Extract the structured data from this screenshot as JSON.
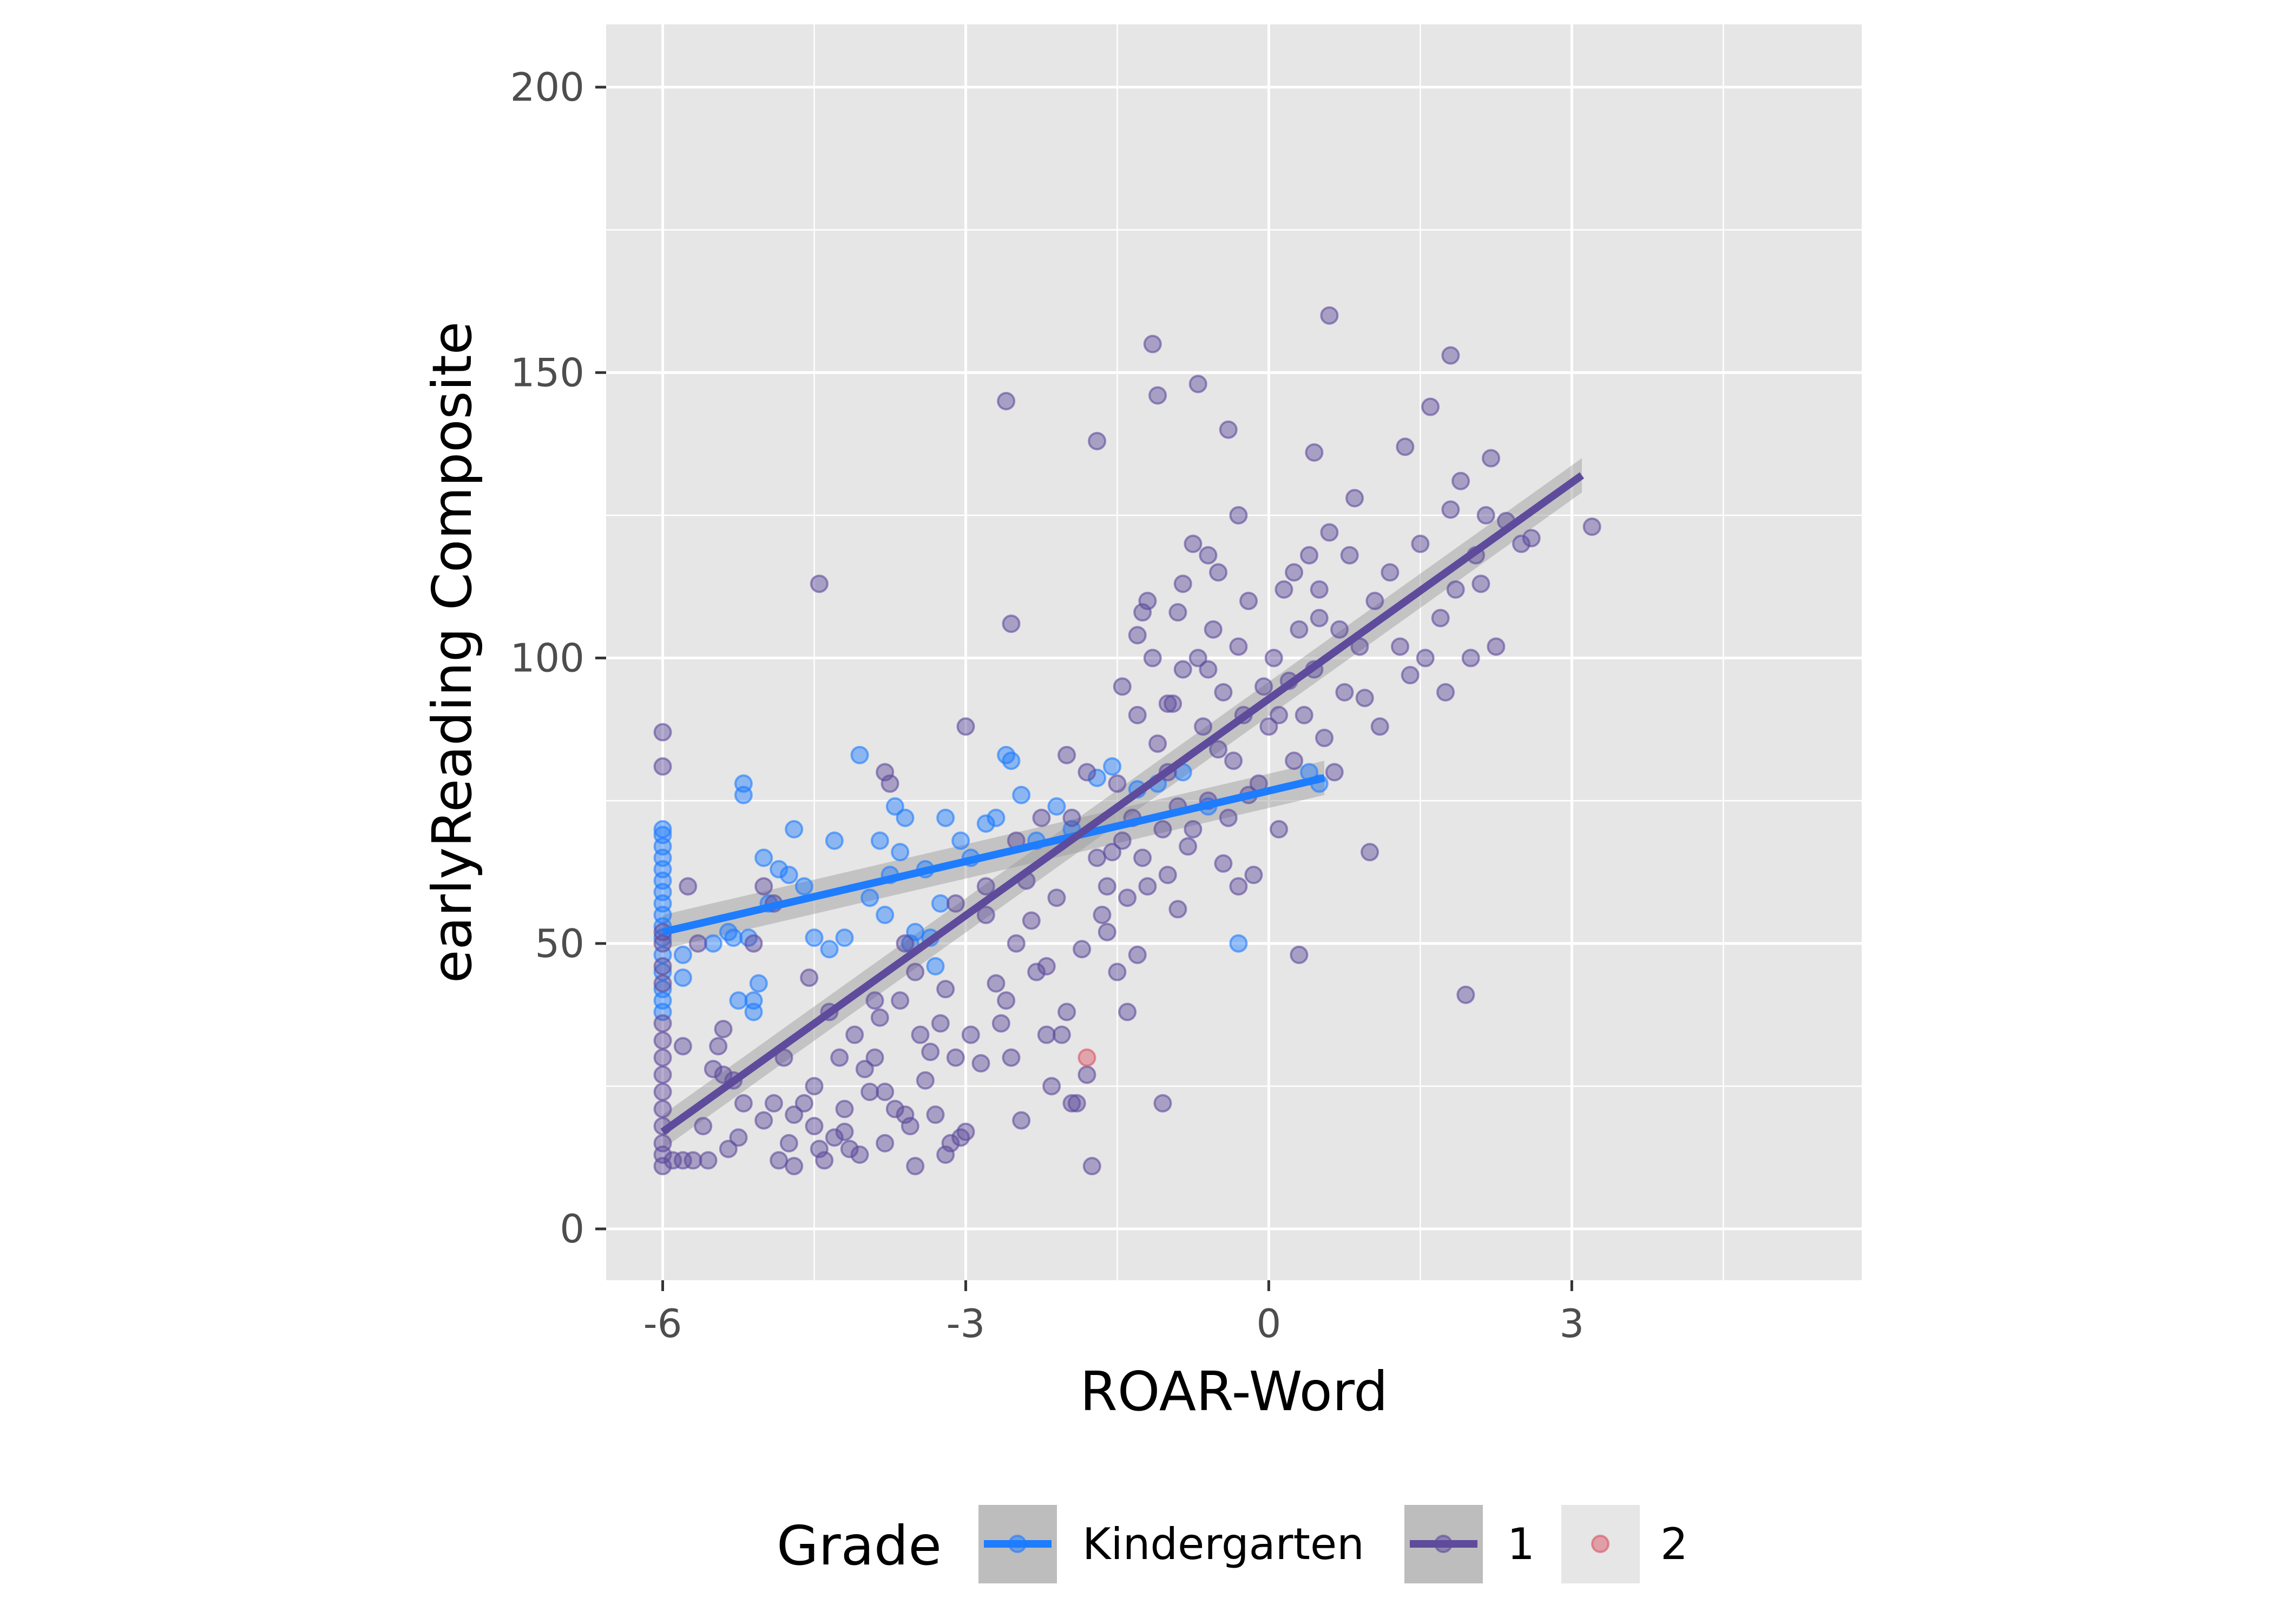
{
  "chart_data": {
    "type": "scatter",
    "xlabel": "ROAR-Word",
    "ylabel": "earlyReading Composite",
    "xlim": [
      -6.56,
      5.87
    ],
    "ylim": [
      -9,
      211
    ],
    "x_ticks": [
      "-6",
      "-3",
      "0",
      "3"
    ],
    "x_tick_values": [
      -6,
      -3,
      0,
      3
    ],
    "y_ticks": [
      "0",
      "50",
      "100",
      "150",
      "200"
    ],
    "y_tick_values": [
      0,
      50,
      100,
      150,
      200
    ],
    "grid": true,
    "legend": {
      "title": "Grade",
      "position": "bottom",
      "entries": [
        "Kindergarten",
        "1",
        "2"
      ]
    },
    "colors": {
      "panel": "#e6e6e6",
      "grid": "#ffffff",
      "Kindergarten": "#1e7cff",
      "1": "#5e4b9c",
      "2": "#d95565",
      "ribbon": "#9a9a9a"
    },
    "series": [
      {
        "name": "Kindergarten",
        "fit": {
          "x": [
            -6.0,
            0.55
          ],
          "y": [
            52,
            79
          ],
          "se": 3
        },
        "points": [
          [
            -6.0,
            70
          ],
          [
            -6.0,
            69
          ],
          [
            -6.0,
            67
          ],
          [
            -6.0,
            65
          ],
          [
            -6.0,
            63
          ],
          [
            -6.0,
            61
          ],
          [
            -6.0,
            59
          ],
          [
            -6.0,
            57
          ],
          [
            -6.0,
            55
          ],
          [
            -6.0,
            53
          ],
          [
            -6.0,
            51
          ],
          [
            -6.0,
            48
          ],
          [
            -6.0,
            45
          ],
          [
            -6.0,
            42
          ],
          [
            -6.0,
            40
          ],
          [
            -6.0,
            38
          ],
          [
            -5.8,
            48
          ],
          [
            -5.8,
            44
          ],
          [
            -5.5,
            50
          ],
          [
            -5.35,
            52
          ],
          [
            -5.3,
            51
          ],
          [
            -5.25,
            40
          ],
          [
            -5.2,
            78
          ],
          [
            -5.2,
            76
          ],
          [
            -5.15,
            51
          ],
          [
            -5.1,
            38
          ],
          [
            -5.1,
            40
          ],
          [
            -5.05,
            43
          ],
          [
            -5.0,
            65
          ],
          [
            -4.95,
            57
          ],
          [
            -4.85,
            63
          ],
          [
            -4.75,
            62
          ],
          [
            -4.7,
            70
          ],
          [
            -4.6,
            60
          ],
          [
            -4.5,
            51
          ],
          [
            -4.35,
            49
          ],
          [
            -4.3,
            68
          ],
          [
            -4.2,
            51
          ],
          [
            -4.05,
            83
          ],
          [
            -3.95,
            58
          ],
          [
            -3.85,
            68
          ],
          [
            -3.8,
            55
          ],
          [
            -3.75,
            62
          ],
          [
            -3.7,
            74
          ],
          [
            -3.65,
            66
          ],
          [
            -3.6,
            72
          ],
          [
            -3.55,
            50
          ],
          [
            -3.5,
            52
          ],
          [
            -3.4,
            63
          ],
          [
            -3.35,
            51
          ],
          [
            -3.3,
            46
          ],
          [
            -3.25,
            57
          ],
          [
            -3.2,
            72
          ],
          [
            -3.05,
            68
          ],
          [
            -2.95,
            65
          ],
          [
            -2.8,
            71
          ],
          [
            -2.7,
            72
          ],
          [
            -2.6,
            83
          ],
          [
            -2.55,
            82
          ],
          [
            -2.45,
            76
          ],
          [
            -2.3,
            68
          ],
          [
            -2.1,
            74
          ],
          [
            -1.95,
            70
          ],
          [
            -1.7,
            79
          ],
          [
            -1.55,
            81
          ],
          [
            -1.3,
            77
          ],
          [
            -1.1,
            78
          ],
          [
            -0.85,
            80
          ],
          [
            -0.6,
            74
          ],
          [
            -0.3,
            50
          ],
          [
            0.4,
            80
          ],
          [
            0.5,
            78
          ]
        ]
      },
      {
        "name": "1",
        "fit": {
          "x": [
            -6.0,
            3.1
          ],
          "y": [
            17,
            132
          ],
          "se": 3
        },
        "points": [
          [
            -6.0,
            87
          ],
          [
            -6.0,
            81
          ],
          [
            -6.0,
            52
          ],
          [
            -6.0,
            50
          ],
          [
            -6.0,
            46
          ],
          [
            -6.0,
            43
          ],
          [
            -6.0,
            36
          ],
          [
            -6.0,
            33
          ],
          [
            -6.0,
            30
          ],
          [
            -6.0,
            27
          ],
          [
            -6.0,
            24
          ],
          [
            -6.0,
            21
          ],
          [
            -6.0,
            18
          ],
          [
            -6.0,
            15
          ],
          [
            -6.0,
            13
          ],
          [
            -6.0,
            11
          ],
          [
            -5.9,
            12
          ],
          [
            -5.8,
            12
          ],
          [
            -5.8,
            32
          ],
          [
            -5.75,
            60
          ],
          [
            -5.65,
            50
          ],
          [
            -5.7,
            12
          ],
          [
            -5.55,
            12
          ],
          [
            -5.5,
            28
          ],
          [
            -5.45,
            32
          ],
          [
            -5.4,
            35
          ],
          [
            -5.35,
            14
          ],
          [
            -5.3,
            26
          ],
          [
            -5.25,
            16
          ],
          [
            -5.2,
            22
          ],
          [
            -5.1,
            50
          ],
          [
            -5.0,
            60
          ],
          [
            -5.0,
            19
          ],
          [
            -4.9,
            57
          ],
          [
            -4.85,
            12
          ],
          [
            -4.8,
            30
          ],
          [
            -4.75,
            15
          ],
          [
            -4.7,
            20
          ],
          [
            -4.6,
            22
          ],
          [
            -4.55,
            44
          ],
          [
            -4.5,
            18
          ],
          [
            -4.45,
            14
          ],
          [
            -4.4,
            12
          ],
          [
            -4.35,
            38
          ],
          [
            -4.3,
            16
          ],
          [
            -4.25,
            30
          ],
          [
            -4.2,
            21
          ],
          [
            -4.15,
            14
          ],
          [
            -4.1,
            34
          ],
          [
            -4.05,
            13
          ],
          [
            -4.0,
            28
          ],
          [
            -3.95,
            24
          ],
          [
            -3.9,
            30
          ],
          [
            -3.85,
            37
          ],
          [
            -3.8,
            15
          ],
          [
            -3.8,
            80
          ],
          [
            -3.75,
            78
          ],
          [
            -3.7,
            21
          ],
          [
            -3.65,
            40
          ],
          [
            -3.6,
            50
          ],
          [
            -3.55,
            18
          ],
          [
            -3.5,
            11
          ],
          [
            -3.45,
            34
          ],
          [
            -3.4,
            26
          ],
          [
            -3.35,
            31
          ],
          [
            -3.3,
            20
          ],
          [
            -3.25,
            36
          ],
          [
            -3.2,
            42
          ],
          [
            -3.15,
            15
          ],
          [
            -3.1,
            30
          ],
          [
            -3.05,
            16
          ],
          [
            -3.0,
            88
          ],
          [
            -2.95,
            34
          ],
          [
            -2.85,
            29
          ],
          [
            -2.8,
            55
          ],
          [
            -2.7,
            43
          ],
          [
            -2.65,
            36
          ],
          [
            -2.6,
            40
          ],
          [
            -2.55,
            30
          ],
          [
            -2.5,
            50
          ],
          [
            -2.45,
            19
          ],
          [
            -2.4,
            61
          ],
          [
            -2.35,
            54
          ],
          [
            -2.3,
            45
          ],
          [
            -2.25,
            72
          ],
          [
            -2.2,
            46
          ],
          [
            -2.15,
            25
          ],
          [
            -2.1,
            58
          ],
          [
            -2.05,
            34
          ],
          [
            -2.0,
            83
          ],
          [
            -1.95,
            72
          ],
          [
            -1.9,
            22
          ],
          [
            -1.85,
            49
          ],
          [
            -1.8,
            80
          ],
          [
            -1.75,
            11
          ],
          [
            -1.7,
            65
          ],
          [
            -1.65,
            55
          ],
          [
            -1.6,
            60
          ],
          [
            -1.55,
            66
          ],
          [
            -1.5,
            45
          ],
          [
            -1.45,
            95
          ],
          [
            -1.4,
            58
          ],
          [
            -1.35,
            72
          ],
          [
            -1.3,
            90
          ],
          [
            -1.25,
            65
          ],
          [
            -1.2,
            110
          ],
          [
            -1.15,
            100
          ],
          [
            -1.1,
            85
          ],
          [
            -1.05,
            70
          ],
          [
            -1.0,
            62
          ],
          [
            -0.95,
            92
          ],
          [
            -0.9,
            108
          ],
          [
            -0.85,
            98
          ],
          [
            -0.8,
            67
          ],
          [
            -0.75,
            120
          ],
          [
            -0.7,
            100
          ],
          [
            -0.65,
            88
          ],
          [
            -0.6,
            75
          ],
          [
            -0.55,
            105
          ],
          [
            -0.5,
            115
          ],
          [
            -0.45,
            94
          ],
          [
            -0.4,
            72
          ],
          [
            -0.35,
            82
          ],
          [
            -0.3,
            60
          ],
          [
            -0.25,
            90
          ],
          [
            -0.2,
            110
          ],
          [
            -0.15,
            62
          ],
          [
            -0.1,
            78
          ],
          [
            -0.05,
            95
          ],
          [
            0.0,
            88
          ],
          [
            0.05,
            100
          ],
          [
            0.1,
            70
          ],
          [
            0.15,
            112
          ],
          [
            0.2,
            96
          ],
          [
            0.25,
            82
          ],
          [
            0.3,
            105
          ],
          [
            0.35,
            90
          ],
          [
            0.4,
            118
          ],
          [
            0.45,
            98
          ],
          [
            0.5,
            112
          ],
          [
            0.55,
            86
          ],
          [
            0.6,
            122
          ],
          [
            0.65,
            80
          ],
          [
            0.7,
            105
          ],
          [
            0.75,
            94
          ],
          [
            0.8,
            118
          ],
          [
            0.85,
            128
          ],
          [
            0.9,
            102
          ],
          [
            0.95,
            93
          ],
          [
            1.0,
            66
          ],
          [
            1.05,
            110
          ],
          [
            1.1,
            88
          ],
          [
            1.2,
            115
          ],
          [
            1.3,
            102
          ],
          [
            1.35,
            137
          ],
          [
            1.4,
            97
          ],
          [
            1.5,
            120
          ],
          [
            1.55,
            100
          ],
          [
            1.6,
            144
          ],
          [
            1.7,
            107
          ],
          [
            1.75,
            94
          ],
          [
            1.8,
            126
          ],
          [
            1.85,
            112
          ],
          [
            1.9,
            131
          ],
          [
            2.0,
            100
          ],
          [
            2.05,
            118
          ],
          [
            2.1,
            113
          ],
          [
            2.15,
            125
          ],
          [
            2.2,
            135
          ],
          [
            2.25,
            102
          ],
          [
            2.35,
            124
          ],
          [
            2.5,
            120
          ],
          [
            2.6,
            121
          ],
          [
            -2.6,
            145
          ],
          [
            -1.7,
            138
          ],
          [
            -1.15,
            155
          ],
          [
            -1.1,
            146
          ],
          [
            -0.7,
            148
          ],
          [
            -0.4,
            140
          ],
          [
            0.6,
            160
          ],
          [
            1.8,
            153
          ],
          [
            0.45,
            136
          ],
          [
            3.2,
            123
          ],
          [
            1.95,
            41
          ],
          [
            0.3,
            48
          ],
          [
            -2.55,
            106
          ],
          [
            -4.45,
            113
          ],
          [
            -1.95,
            22
          ],
          [
            -1.05,
            22
          ],
          [
            -1.8,
            27
          ],
          [
            -2.2,
            34
          ],
          [
            -0.6,
            118
          ],
          [
            -0.3,
            125
          ],
          [
            0.25,
            115
          ],
          [
            0.5,
            107
          ],
          [
            -1.3,
            104
          ],
          [
            -0.85,
            113
          ],
          [
            -1.5,
            78
          ],
          [
            -1.0,
            80
          ],
          [
            -0.5,
            84
          ],
          [
            -0.2,
            76
          ],
          [
            -1.6,
            52
          ],
          [
            -1.3,
            48
          ],
          [
            -0.9,
            56
          ],
          [
            -2.5,
            68
          ],
          [
            -2.8,
            60
          ],
          [
            -3.1,
            57
          ],
          [
            -3.5,
            45
          ],
          [
            -3.9,
            40
          ],
          [
            -4.5,
            25
          ],
          [
            -4.9,
            22
          ],
          [
            -5.4,
            27
          ],
          [
            -5.6,
            18
          ],
          [
            -2.0,
            38
          ],
          [
            -1.4,
            38
          ],
          [
            -3.2,
            13
          ],
          [
            -3.6,
            20
          ],
          [
            -4.2,
            17
          ],
          [
            -4.7,
            11
          ],
          [
            -3.8,
            24
          ],
          [
            -3.0,
            17
          ],
          [
            -0.75,
            70
          ],
          [
            -0.45,
            64
          ],
          [
            -0.9,
            74
          ],
          [
            -1.2,
            60
          ],
          [
            -1.45,
            68
          ],
          [
            -1.0,
            92
          ],
          [
            -0.6,
            98
          ],
          [
            0.1,
            90
          ],
          [
            -0.3,
            102
          ],
          [
            -1.25,
            108
          ]
        ]
      },
      {
        "name": "2",
        "fit": null,
        "points": [
          [
            -1.8,
            30
          ]
        ]
      }
    ]
  }
}
